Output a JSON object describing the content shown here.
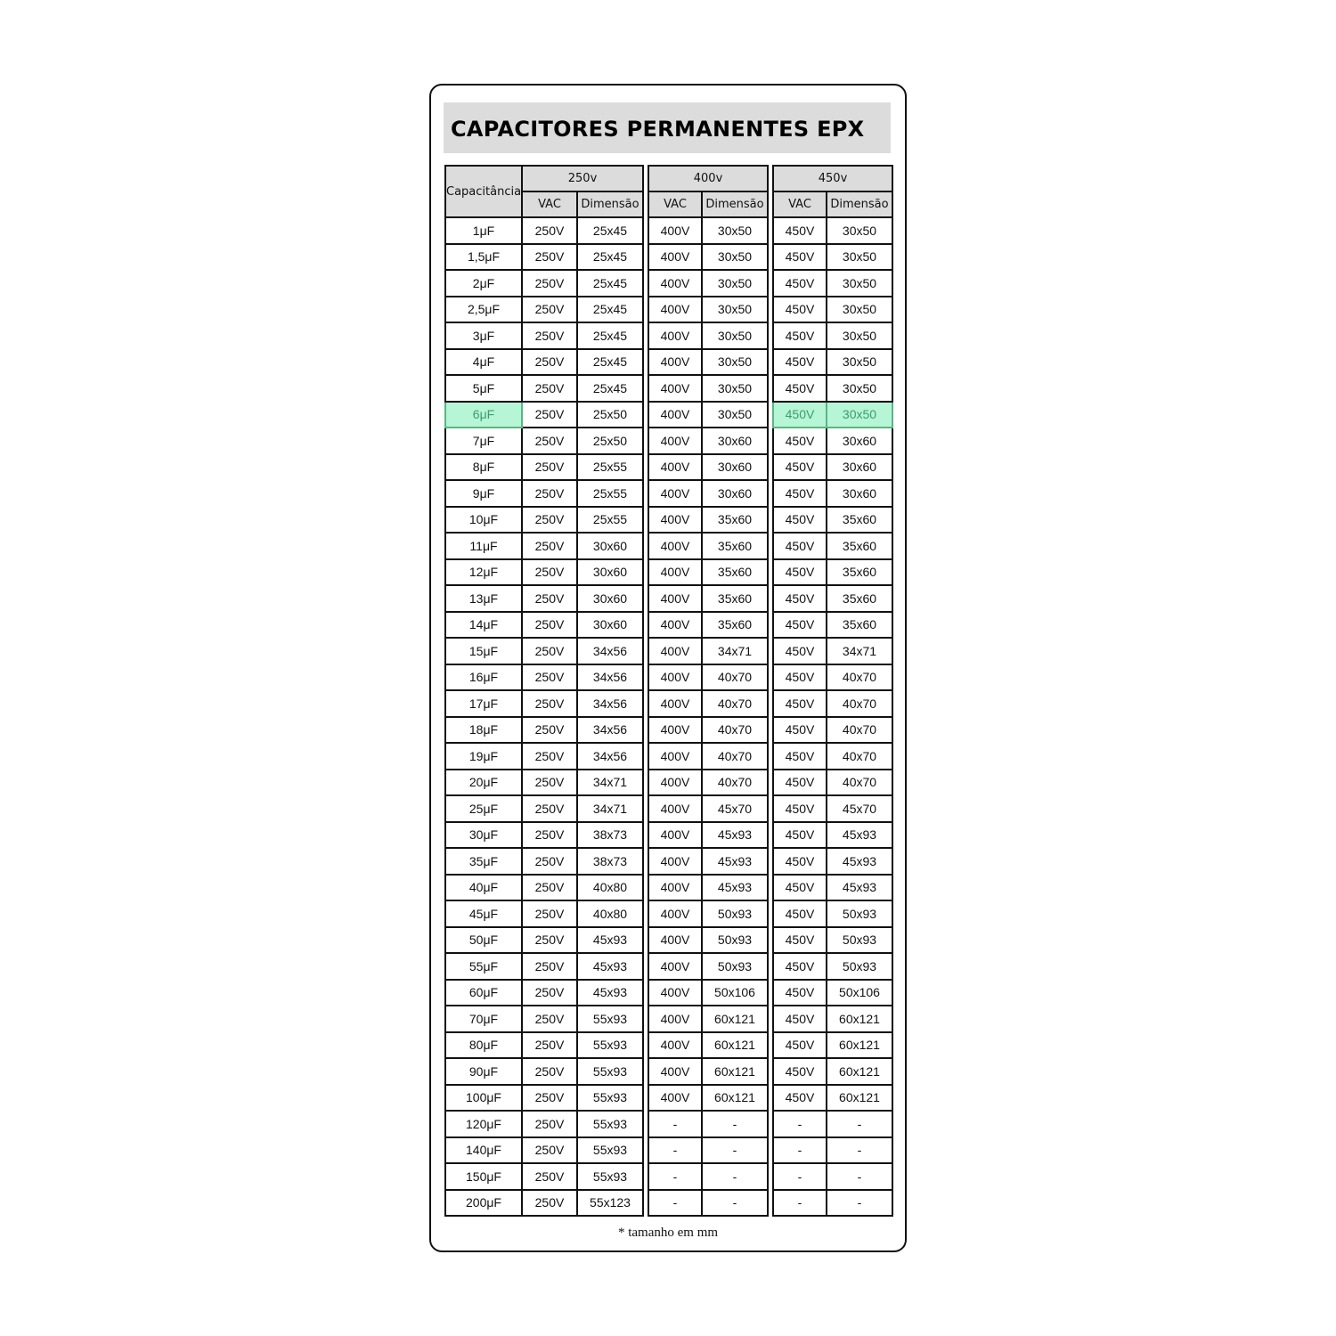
{
  "title": "CAPACITORES PERMANENTES EPX",
  "headers": {
    "capacitance": "Capacitância",
    "groups": [
      "250v",
      "400v",
      "450v"
    ],
    "vac": "VAC",
    "dimension": "Dimensão"
  },
  "highlight_color": "#b6f5d6",
  "highlighted_row": "6μF",
  "rows": [
    {
      "cap": "1μF",
      "v250": "250V",
      "d250": "25x45",
      "v400": "400V",
      "d400": "30x50",
      "v450": "450V",
      "d450": "30x50"
    },
    {
      "cap": "1,5μF",
      "v250": "250V",
      "d250": "25x45",
      "v400": "400V",
      "d400": "30x50",
      "v450": "450V",
      "d450": "30x50"
    },
    {
      "cap": "2μF",
      "v250": "250V",
      "d250": "25x45",
      "v400": "400V",
      "d400": "30x50",
      "v450": "450V",
      "d450": "30x50"
    },
    {
      "cap": "2,5μF",
      "v250": "250V",
      "d250": "25x45",
      "v400": "400V",
      "d400": "30x50",
      "v450": "450V",
      "d450": "30x50"
    },
    {
      "cap": "3μF",
      "v250": "250V",
      "d250": "25x45",
      "v400": "400V",
      "d400": "30x50",
      "v450": "450V",
      "d450": "30x50"
    },
    {
      "cap": "4μF",
      "v250": "250V",
      "d250": "25x45",
      "v400": "400V",
      "d400": "30x50",
      "v450": "450V",
      "d450": "30x50"
    },
    {
      "cap": "5μF",
      "v250": "250V",
      "d250": "25x45",
      "v400": "400V",
      "d400": "30x50",
      "v450": "450V",
      "d450": "30x50"
    },
    {
      "cap": "6μF",
      "v250": "250V",
      "d250": "25x50",
      "v400": "400V",
      "d400": "30x50",
      "v450": "450V",
      "d450": "30x50"
    },
    {
      "cap": "7μF",
      "v250": "250V",
      "d250": "25x50",
      "v400": "400V",
      "d400": "30x60",
      "v450": "450V",
      "d450": "30x60"
    },
    {
      "cap": "8μF",
      "v250": "250V",
      "d250": "25x55",
      "v400": "400V",
      "d400": "30x60",
      "v450": "450V",
      "d450": "30x60"
    },
    {
      "cap": "9μF",
      "v250": "250V",
      "d250": "25x55",
      "v400": "400V",
      "d400": "30x60",
      "v450": "450V",
      "d450": "30x60"
    },
    {
      "cap": "10μF",
      "v250": "250V",
      "d250": "25x55",
      "v400": "400V",
      "d400": "35x60",
      "v450": "450V",
      "d450": "35x60"
    },
    {
      "cap": "11μF",
      "v250": "250V",
      "d250": "30x60",
      "v400": "400V",
      "d400": "35x60",
      "v450": "450V",
      "d450": "35x60"
    },
    {
      "cap": "12μF",
      "v250": "250V",
      "d250": "30x60",
      "v400": "400V",
      "d400": "35x60",
      "v450": "450V",
      "d450": "35x60"
    },
    {
      "cap": "13μF",
      "v250": "250V",
      "d250": "30x60",
      "v400": "400V",
      "d400": "35x60",
      "v450": "450V",
      "d450": "35x60"
    },
    {
      "cap": "14μF",
      "v250": "250V",
      "d250": "30x60",
      "v400": "400V",
      "d400": "35x60",
      "v450": "450V",
      "d450": "35x60"
    },
    {
      "cap": "15μF",
      "v250": "250V",
      "d250": "34x56",
      "v400": "400V",
      "d400": "34x71",
      "v450": "450V",
      "d450": "34x71"
    },
    {
      "cap": "16μF",
      "v250": "250V",
      "d250": "34x56",
      "v400": "400V",
      "d400": "40x70",
      "v450": "450V",
      "d450": "40x70"
    },
    {
      "cap": "17μF",
      "v250": "250V",
      "d250": "34x56",
      "v400": "400V",
      "d400": "40x70",
      "v450": "450V",
      "d450": "40x70"
    },
    {
      "cap": "18μF",
      "v250": "250V",
      "d250": "34x56",
      "v400": "400V",
      "d400": "40x70",
      "v450": "450V",
      "d450": "40x70"
    },
    {
      "cap": "19μF",
      "v250": "250V",
      "d250": "34x56",
      "v400": "400V",
      "d400": "40x70",
      "v450": "450V",
      "d450": "40x70"
    },
    {
      "cap": "20μF",
      "v250": "250V",
      "d250": "34x71",
      "v400": "400V",
      "d400": "40x70",
      "v450": "450V",
      "d450": "40x70"
    },
    {
      "cap": "25μF",
      "v250": "250V",
      "d250": "34x71",
      "v400": "400V",
      "d400": "45x70",
      "v450": "450V",
      "d450": "45x70"
    },
    {
      "cap": "30μF",
      "v250": "250V",
      "d250": "38x73",
      "v400": "400V",
      "d400": "45x93",
      "v450": "450V",
      "d450": "45x93"
    },
    {
      "cap": "35μF",
      "v250": "250V",
      "d250": "38x73",
      "v400": "400V",
      "d400": "45x93",
      "v450": "450V",
      "d450": "45x93"
    },
    {
      "cap": "40μF",
      "v250": "250V",
      "d250": "40x80",
      "v400": "400V",
      "d400": "45x93",
      "v450": "450V",
      "d450": "45x93"
    },
    {
      "cap": "45μF",
      "v250": "250V",
      "d250": "40x80",
      "v400": "400V",
      "d400": "50x93",
      "v450": "450V",
      "d450": "50x93"
    },
    {
      "cap": "50μF",
      "v250": "250V",
      "d250": "45x93",
      "v400": "400V",
      "d400": "50x93",
      "v450": "450V",
      "d450": "50x93"
    },
    {
      "cap": "55μF",
      "v250": "250V",
      "d250": "45x93",
      "v400": "400V",
      "d400": "50x93",
      "v450": "450V",
      "d450": "50x93"
    },
    {
      "cap": "60μF",
      "v250": "250V",
      "d250": "45x93",
      "v400": "400V",
      "d400": "50x106",
      "v450": "450V",
      "d450": "50x106"
    },
    {
      "cap": "70μF",
      "v250": "250V",
      "d250": "55x93",
      "v400": "400V",
      "d400": "60x121",
      "v450": "450V",
      "d450": "60x121"
    },
    {
      "cap": "80μF",
      "v250": "250V",
      "d250": "55x93",
      "v400": "400V",
      "d400": "60x121",
      "v450": "450V",
      "d450": "60x121"
    },
    {
      "cap": "90μF",
      "v250": "250V",
      "d250": "55x93",
      "v400": "400V",
      "d400": "60x121",
      "v450": "450V",
      "d450": "60x121"
    },
    {
      "cap": "100μF",
      "v250": "250V",
      "d250": "55x93",
      "v400": "400V",
      "d400": "60x121",
      "v450": "450V",
      "d450": "60x121"
    },
    {
      "cap": "120μF",
      "v250": "250V",
      "d250": "55x93",
      "v400": "-",
      "d400": "-",
      "v450": "-",
      "d450": "-"
    },
    {
      "cap": "140μF",
      "v250": "250V",
      "d250": "55x93",
      "v400": "-",
      "d400": "-",
      "v450": "-",
      "d450": "-"
    },
    {
      "cap": "150μF",
      "v250": "250V",
      "d250": "55x93",
      "v400": "-",
      "d400": "-",
      "v450": "-",
      "d450": "-"
    },
    {
      "cap": "200μF",
      "v250": "250V",
      "d250": "55x123",
      "v400": "-",
      "d400": "-",
      "v450": "-",
      "d450": "-"
    }
  ],
  "footnote": "* tamanho em mm"
}
